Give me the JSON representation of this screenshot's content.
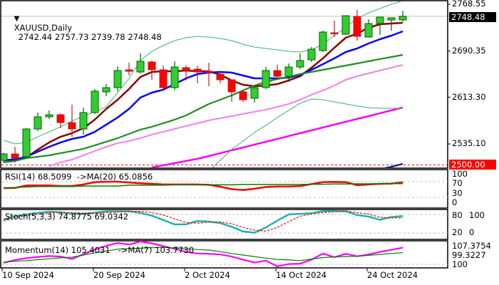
{
  "header": {
    "collapse_icon": "triangle-down-icon",
    "symbol_timeframe": "XAUUSD,Daily",
    "ohlc": "2742.44 2757.73 2739.78 2748.48"
  },
  "price_axis": {
    "labels": [
      "2768.55",
      "2690.35",
      "2613.30",
      "2535.10"
    ],
    "current_price": "2748.48",
    "alert_level": "2500.00"
  },
  "indicators": {
    "rsi": {
      "label": "RSI(14) 68.5099  ->MA(20) 65.0856",
      "axis": [
        "100",
        "70",
        "30",
        "0"
      ]
    },
    "stoch": {
      "label": "Stoch(5,3,3) 74.8775 69.0342",
      "axis": [
        "80",
        "100",
        "20",
        "0"
      ]
    },
    "momentum": {
      "label": "Momentum(14) 105.4031   ->MA(7) 103.7730",
      "axis": [
        "107.3754",
        "99.3227",
        "100"
      ]
    }
  },
  "date_axis": [
    "10 Sep 2024",
    "20 Sep 2024",
    "2 Oct 2024",
    "14 Oct 2024",
    "24 Oct 2024"
  ],
  "colors": {
    "bull": "#32cd32",
    "bull_edge": "#006400",
    "bear": "#ff0000",
    "bear_edge": "#b22222",
    "ma_fast": "#8b0000",
    "ma_mid": "#0000ff",
    "ma_slow": "#228b22",
    "ma_violet": "#ee82ee",
    "ma_magenta": "#ff00ff",
    "bands": "#3cb371",
    "ma_navy": "#000080",
    "rsi": "#ff0000",
    "rsi_ma": "#008000",
    "stoch_main": "#20b2aa",
    "stoch_signal": "#ff0000",
    "momentum": "#ff00ff",
    "momentum_ma": "#008000",
    "current_price_box": "#000000",
    "alert_box": "#ff0000"
  },
  "chart_data": {
    "type": "candlestick",
    "symbol": "XAUUSD",
    "timeframe": "Daily",
    "ylim": [
      2493,
      2775
    ],
    "x_ticks": [
      {
        "label": "10 Sep 2024",
        "bar": 0
      },
      {
        "label": "20 Sep 2024",
        "bar": 8
      },
      {
        "label": "2 Oct 2024",
        "bar": 16
      },
      {
        "label": "14 Oct 2024",
        "bar": 24
      },
      {
        "label": "24 Oct 2024",
        "bar": 32
      }
    ],
    "horizontal_lines": [
      {
        "value": 2748.48,
        "style": "solid",
        "color": "#c0c0c0"
      },
      {
        "value": 2500.0,
        "style": "dashed",
        "color": "#ff0000"
      }
    ],
    "ohlc": [
      [
        2507.8,
        2520.0,
        2504.0,
        2518.4
      ],
      [
        2518.4,
        2530.3,
        2504.1,
        2511.3
      ],
      [
        2513.7,
        2561.3,
        2512.0,
        2560.1
      ],
      [
        2560.1,
        2587.5,
        2556.5,
        2580.4
      ],
      [
        2580.4,
        2591.1,
        2576.8,
        2583.9
      ],
      [
        2583.9,
        2586.3,
        2561.3,
        2570.8
      ],
      [
        2570.8,
        2600.6,
        2547.0,
        2560.1
      ],
      [
        2560.1,
        2595.9,
        2550.6,
        2587.5
      ],
      [
        2587.5,
        2626.8,
        2585.0,
        2623.3
      ],
      [
        2622.1,
        2635.2,
        2614.9,
        2629.2
      ],
      [
        2629.2,
        2664.9,
        2623.3,
        2657.8
      ],
      [
        2659.0,
        2670.9,
        2649.5,
        2656.6
      ],
      [
        2655.4,
        2686.4,
        2653.0,
        2673.3
      ],
      [
        2672.1,
        2674.5,
        2642.3,
        2659.0
      ],
      [
        2659.0,
        2666.1,
        2625.6,
        2629.2
      ],
      [
        2629.2,
        2673.3,
        2625.0,
        2663.7
      ],
      [
        2662.6,
        2666.1,
        2641.1,
        2657.8
      ],
      [
        2660.2,
        2666.1,
        2636.4,
        2655.4
      ],
      [
        2656.6,
        2670.9,
        2631.6,
        2654.2
      ],
      [
        2651.8,
        2655.4,
        2636.4,
        2642.3
      ],
      [
        2642.3,
        2642.3,
        2605.4,
        2622.1
      ],
      [
        2622.1,
        2624.4,
        2605.4,
        2608.9
      ],
      [
        2611.4,
        2633.0,
        2604.2,
        2629.2
      ],
      [
        2629.2,
        2663.7,
        2627.0,
        2657.8
      ],
      [
        2657.8,
        2667.3,
        2643.5,
        2648.3
      ],
      [
        2648.3,
        2669.7,
        2638.8,
        2663.7
      ],
      [
        2663.7,
        2686.4,
        2660.2,
        2674.5
      ],
      [
        2675.7,
        2697.1,
        2672.1,
        2693.5
      ],
      [
        2691.1,
        2724.5,
        2689.0,
        2722.1
      ],
      [
        2720.9,
        2741.2,
        2713.8,
        2719.7
      ],
      [
        2718.5,
        2749.5,
        2717.0,
        2749.5
      ],
      [
        2748.3,
        2759.0,
        2707.8,
        2715.0
      ],
      [
        2713.8,
        2743.6,
        2713.0,
        2736.4
      ],
      [
        2736.4,
        2747.1,
        2717.3,
        2747.1
      ],
      [
        2742.3,
        2745.9,
        2724.5,
        2745.9
      ],
      [
        2742.44,
        2757.73,
        2739.78,
        2748.48
      ]
    ],
    "overlays": [
      {
        "key": "ma_fast",
        "values": [
          2507.8,
          2509.0,
          2512.6,
          2525.7,
          2537.6,
          2547.1,
          2553.1,
          2561.4,
          2575.7,
          2593.6,
          2609.0,
          2626.9,
          2647.1,
          2655.4,
          2656.6,
          2656.6,
          2657.8,
          2656.6,
          2656.6,
          2650.7,
          2641.2,
          2634.0,
          2631.6,
          2632.8,
          2635.2,
          2641.2,
          2648.3,
          2662.6,
          2678.1,
          2695.9,
          2712.6,
          2719.7,
          2729.3,
          2735.2,
          2736.4,
          2737.6
        ]
      },
      {
        "key": "ma_mid",
        "values": [
          2507.8,
          2509.0,
          2513.7,
          2522.1,
          2530.4,
          2537.6,
          2543.5,
          2547.1,
          2555.4,
          2567.4,
          2579.3,
          2593.6,
          2612.6,
          2620.9,
          2625.7,
          2635.2,
          2644.7,
          2651.9,
          2654.3,
          2655.4,
          2654.3,
          2649.5,
          2644.7,
          2644.7,
          2644.7,
          2645.9,
          2650.7,
          2659.0,
          2668.5,
          2678.1,
          2688.8,
          2694.7,
          2703.1,
          2710.2,
          2716.2,
          2723.3
        ]
      },
      {
        "key": "ma_slow",
        "values": [
          2504.2,
          2506.6,
          2511.4,
          2513.7,
          2516.1,
          2519.7,
          2523.3,
          2526.9,
          2532.8,
          2538.8,
          2544.7,
          2551.9,
          2559.0,
          2563.8,
          2569.7,
          2575.7,
          2582.8,
          2592.4,
          2601.9,
          2609.0,
          2616.2,
          2624.5,
          2632.8,
          2638.8,
          2643.5,
          2647.1,
          2651.9,
          2655.4,
          2659.0,
          2662.6,
          2666.1,
          2669.7,
          2673.3,
          2676.9,
          2680.4,
          2684.0
        ]
      },
      {
        "key": "ma_violet",
        "values": [
          null,
          null,
          null,
          null,
          2498.1,
          2504.2,
          2509.0,
          2516.1,
          2523.3,
          2530.4,
          2536.4,
          2540.0,
          2544.7,
          2550.7,
          2555.4,
          2560.2,
          2565.0,
          2569.7,
          2574.5,
          2578.1,
          2581.6,
          2585.2,
          2588.8,
          2592.4,
          2597.1,
          2601.9,
          2609.0,
          2617.4,
          2624.5,
          2632.8,
          2642.3,
          2648.3,
          2653.1,
          2657.8,
          2662.6,
          2667.3
        ]
      },
      {
        "key": "ma_magenta",
        "values": [
          null,
          null,
          null,
          null,
          null,
          null,
          null,
          null,
          null,
          null,
          null,
          null,
          null,
          2495.8,
          2499.4,
          2503.0,
          2506.6,
          2510.2,
          2514.9,
          2519.7,
          2524.5,
          2529.2,
          2534.0,
          2538.8,
          2543.5,
          2548.3,
          2553.1,
          2557.8,
          2562.6,
          2567.4,
          2572.1,
          2576.9,
          2581.6,
          2586.4,
          2591.2,
          2595.9
        ]
      },
      {
        "key": "ma_navy",
        "values": [
          null,
          null,
          null,
          null,
          null,
          null,
          null,
          null,
          null,
          null,
          null,
          null,
          null,
          null,
          null,
          null,
          null,
          null,
          null,
          null,
          null,
          null,
          null,
          null,
          null,
          null,
          null,
          null,
          null,
          null,
          null,
          null,
          null,
          2493.4,
          2496.9,
          2501.8
        ]
      },
      {
        "key": "bands",
        "values": [
          2541.2,
          2535.2,
          2537.6,
          2547.1,
          2555.4,
          2563.8,
          2573.3,
          2581.6,
          2588.8,
          2597.1,
          2620.9,
          2644.7,
          2674.5,
          2689.9,
          2699.5,
          2707.8,
          2712.6,
          2715.0,
          2713.8,
          2711.4,
          2707.8,
          2701.9,
          2697.1,
          2694.7,
          2692.3,
          2689.9,
          2688.8,
          2692.3,
          2701.9,
          2716.2,
          2730.5,
          2744.7,
          2754.3,
          2761.4,
          2768.6,
          2774.5
        ]
      },
      {
        "key": "bands",
        "values": [
          null,
          null,
          null,
          null,
          null,
          null,
          null,
          null,
          null,
          null,
          null,
          null,
          null,
          null,
          null,
          null,
          null,
          null,
          2489.9,
          2507.8,
          2525.7,
          2540.0,
          2554.3,
          2566.2,
          2579.3,
          2591.2,
          2603.1,
          2610.2,
          2609.0,
          2605.4,
          2601.9,
          2598.3,
          2595.9,
          2594.7,
          2594.7,
          2594.7
        ]
      }
    ],
    "rsi": {
      "ylim": [
        0,
        100
      ],
      "levels": [
        70,
        30
      ],
      "series": [
        {
          "key": "rsi",
          "values": [
            53.6,
            54,
            60.4,
            60.4,
            60.4,
            59,
            59,
            63,
            69,
            70,
            70,
            68,
            66,
            64.5,
            63,
            63,
            63,
            63,
            62,
            57,
            51,
            48.5,
            52,
            56.5,
            57.6,
            57.6,
            59,
            64,
            69,
            69.5,
            69,
            61,
            63,
            64.5,
            65,
            68.5099
          ]
        },
        {
          "key": "rsi_ma",
          "values": [
            54,
            55,
            56.5,
            57.7,
            57.7,
            57.7,
            57.7,
            58.9,
            58.9,
            58.9,
            58.9,
            61,
            61,
            61,
            61,
            62,
            62,
            62,
            62,
            62,
            62,
            63,
            63,
            63,
            63,
            63,
            63,
            63.5,
            63.5,
            64,
            64,
            64.5,
            64.5,
            65,
            65,
            65.0856
          ]
        }
      ]
    },
    "stoch": {
      "ylim": [
        0,
        100
      ],
      "levels": [
        80,
        20
      ],
      "series": [
        {
          "key": "stoch_main",
          "values": [
            64,
            74,
            80,
            85,
            89,
            87,
            82,
            82,
            86,
            90,
            90,
            90,
            85,
            76,
            62,
            48,
            48,
            59,
            57,
            52,
            40,
            25,
            21,
            38,
            60,
            80,
            82,
            84,
            91,
            91,
            90,
            78,
            73,
            63,
            71.7,
            74.8775
          ]
        },
        {
          "key": "stoch_signal",
          "values": [
            60,
            68,
            76,
            80,
            85,
            87,
            86,
            84,
            83,
            86,
            88,
            90,
            90,
            86,
            78,
            66,
            54,
            52,
            55,
            56,
            50,
            38,
            29,
            26,
            38,
            57,
            74,
            82,
            86,
            89,
            91,
            86,
            81,
            71,
            69,
            69.0342
          ]
        }
      ]
    },
    "momentum": {
      "ylim": [
        99.3227,
        107.3754
      ],
      "levels": [
        100
      ],
      "series": [
        {
          "key": "momentum",
          "values": [
            100.5,
            101.4,
            102,
            102.4,
            102.7,
            102.5,
            101.7,
            103.3,
            104.8,
            106,
            106.9,
            106.4,
            107.3754,
            106.8,
            105.9,
            105,
            104,
            103.5,
            103.4,
            103.2,
            102.5,
            101.5,
            100.6,
            101.2,
            99.3227,
            100.1,
            100.2,
            101.5,
            103.5,
            102.3,
            103.4,
            102.6,
            103.2,
            104,
            104.7,
            105.4031
          ]
        },
        {
          "key": "momentum_ma",
          "values": [
            100.7,
            101,
            101.2,
            101.5,
            101.8,
            102.1,
            102.3,
            103,
            103.7,
            104.3,
            104.9,
            105.1,
            105.2,
            105.4,
            105.5,
            105.3,
            105,
            104.8,
            104.6,
            104.1,
            103.5,
            103,
            102.5,
            102,
            101.6,
            101.4,
            101.2,
            101.7,
            102.2,
            102.4,
            102.5,
            102.6,
            102.9,
            103.2,
            103.5,
            103.773
          ]
        }
      ]
    }
  }
}
